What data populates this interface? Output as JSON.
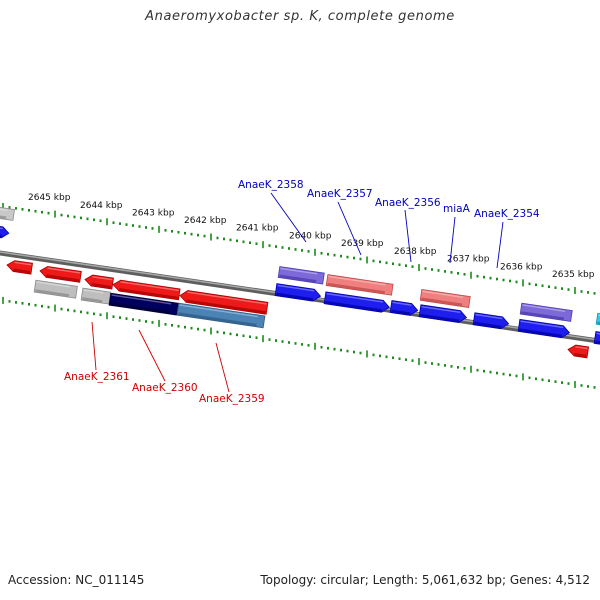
{
  "title": "Anaeromyxobacter sp. K, complete genome",
  "accession": "Accession: NC_011145",
  "summary": "Topology: circular; Length: 5,061,632 bp; Genes: 4,512",
  "colors": {
    "backbone": "#7f7f7f",
    "tick": "#1a8a1a",
    "label_forward": "#0000bb",
    "label_reverse": "#cc0000"
  },
  "scale": {
    "unit": "kbp",
    "labels": [
      "2645 kbp",
      "2644 kbp",
      "2643 kbp",
      "2642 kbp",
      "2641 kbp",
      "2640 kbp",
      "2639 kbp",
      "2638 kbp",
      "2637 kbp",
      "2636 kbp",
      "2635 kbp"
    ]
  },
  "gene_labels": {
    "forward": [
      "AnaeK_2358",
      "AnaeK_2357",
      "AnaeK_2356",
      "miaA",
      "AnaeK_2354"
    ],
    "reverse": [
      "AnaeK_2361",
      "AnaeK_2360",
      "AnaeK_2359"
    ]
  }
}
